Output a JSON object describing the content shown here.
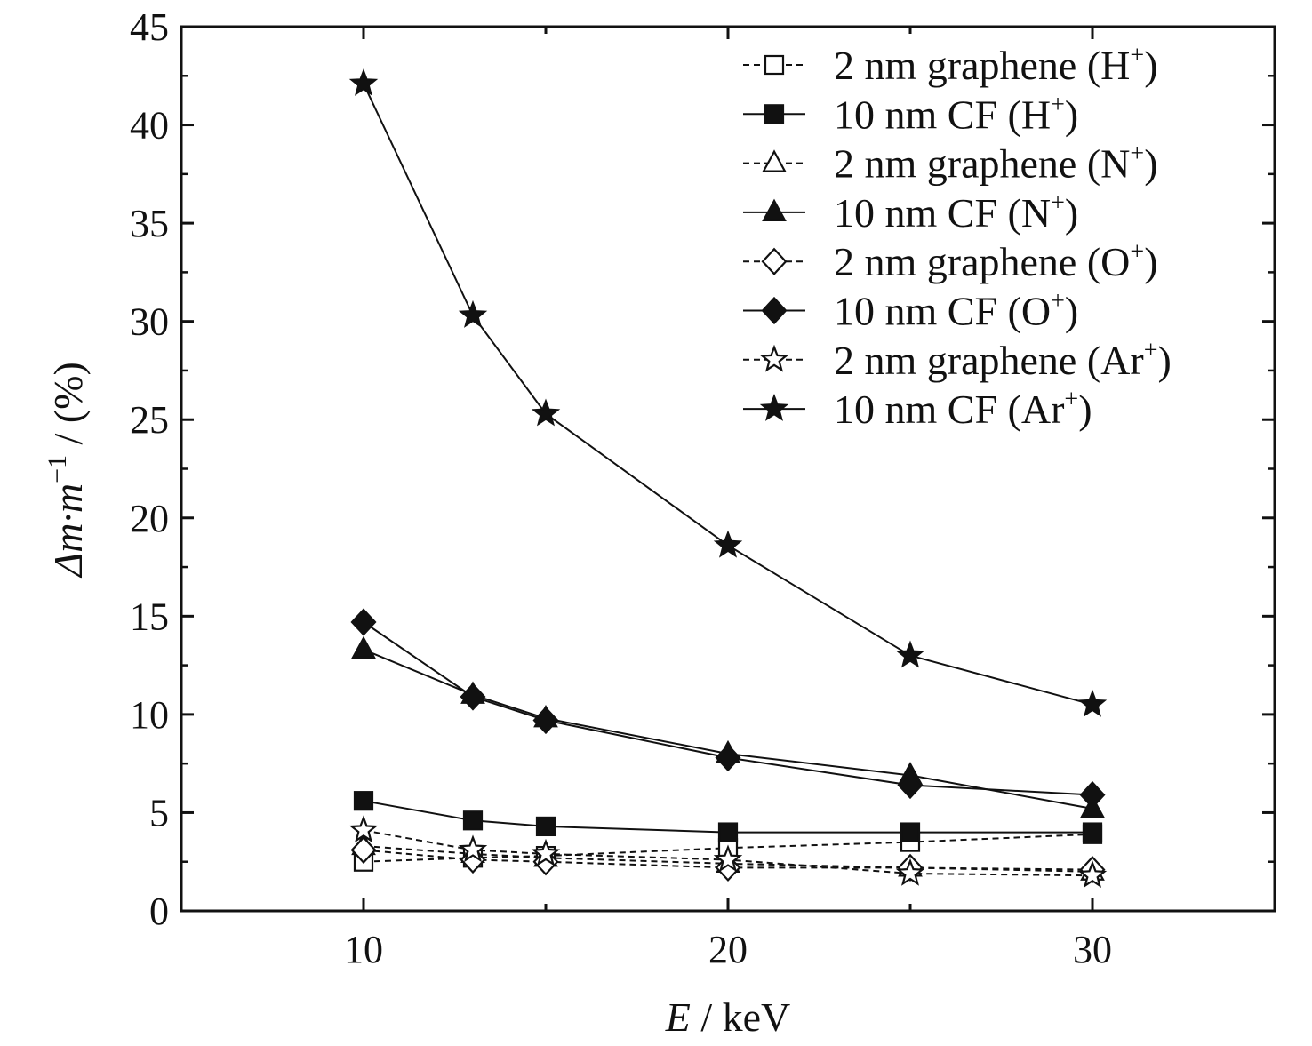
{
  "chart_data": {
    "type": "line",
    "xlabel": {
      "var": "E",
      "unit": " / keV"
    },
    "ylabel": {
      "var": "Δm·m",
      "exp": "−1",
      "unit": " / (%)"
    },
    "xlim": [
      5,
      35
    ],
    "ylim": [
      0,
      45
    ],
    "xticks": [
      10,
      20,
      30
    ],
    "xtick_labels": [
      "10",
      "20",
      "30"
    ],
    "yticks": [
      0,
      5,
      10,
      15,
      20,
      25,
      30,
      35,
      40,
      45
    ],
    "ytick_labels": [
      "0",
      "5",
      "10",
      "15",
      "20",
      "25",
      "30",
      "35",
      "40",
      "45"
    ],
    "legend_position": "top-right",
    "grid": false,
    "x": [
      10,
      13,
      15,
      20,
      25,
      30
    ],
    "series": [
      {
        "name": "2 nm graphene (H",
        "sup": "+",
        "close": ")",
        "marker": "square",
        "filled": false,
        "dash": true,
        "values": [
          2.5,
          2.7,
          2.8,
          3.2,
          3.5,
          3.9
        ]
      },
      {
        "name": "10 nm CF (H",
        "sup": "+",
        "close": ")",
        "marker": "square",
        "filled": true,
        "dash": false,
        "values": [
          5.6,
          4.6,
          4.3,
          4.0,
          4.0,
          4.0
        ]
      },
      {
        "name": "2 nm graphene (N",
        "sup": "+",
        "close": ")",
        "marker": "triangle",
        "filled": false,
        "dash": true,
        "values": [
          3.3,
          2.9,
          2.7,
          2.4,
          2.2,
          2.0
        ]
      },
      {
        "name": "10 nm CF (N",
        "sup": "+",
        "close": ")",
        "marker": "triangle",
        "filled": true,
        "dash": false,
        "values": [
          13.3,
          11.0,
          9.8,
          8.0,
          6.9,
          5.2
        ]
      },
      {
        "name": "2 nm graphene (O",
        "sup": "+",
        "close": ")",
        "marker": "diamond",
        "filled": false,
        "dash": true,
        "values": [
          3.1,
          2.6,
          2.5,
          2.2,
          2.2,
          2.1
        ]
      },
      {
        "name": "10 nm CF (O",
        "sup": "+",
        "close": ")",
        "marker": "diamond",
        "filled": true,
        "dash": false,
        "values": [
          14.7,
          10.9,
          9.7,
          7.8,
          6.4,
          5.9
        ]
      },
      {
        "name": "2 nm graphene (Ar",
        "sup": "+",
        "close": ")",
        "marker": "star",
        "filled": false,
        "dash": true,
        "values": [
          4.1,
          3.1,
          2.9,
          2.6,
          1.9,
          1.8
        ]
      },
      {
        "name": "10 nm CF (Ar",
        "sup": "+",
        "close": ")",
        "marker": "star",
        "filled": true,
        "dash": false,
        "values": [
          42.1,
          30.3,
          25.3,
          18.6,
          13.0,
          10.5
        ]
      }
    ]
  }
}
